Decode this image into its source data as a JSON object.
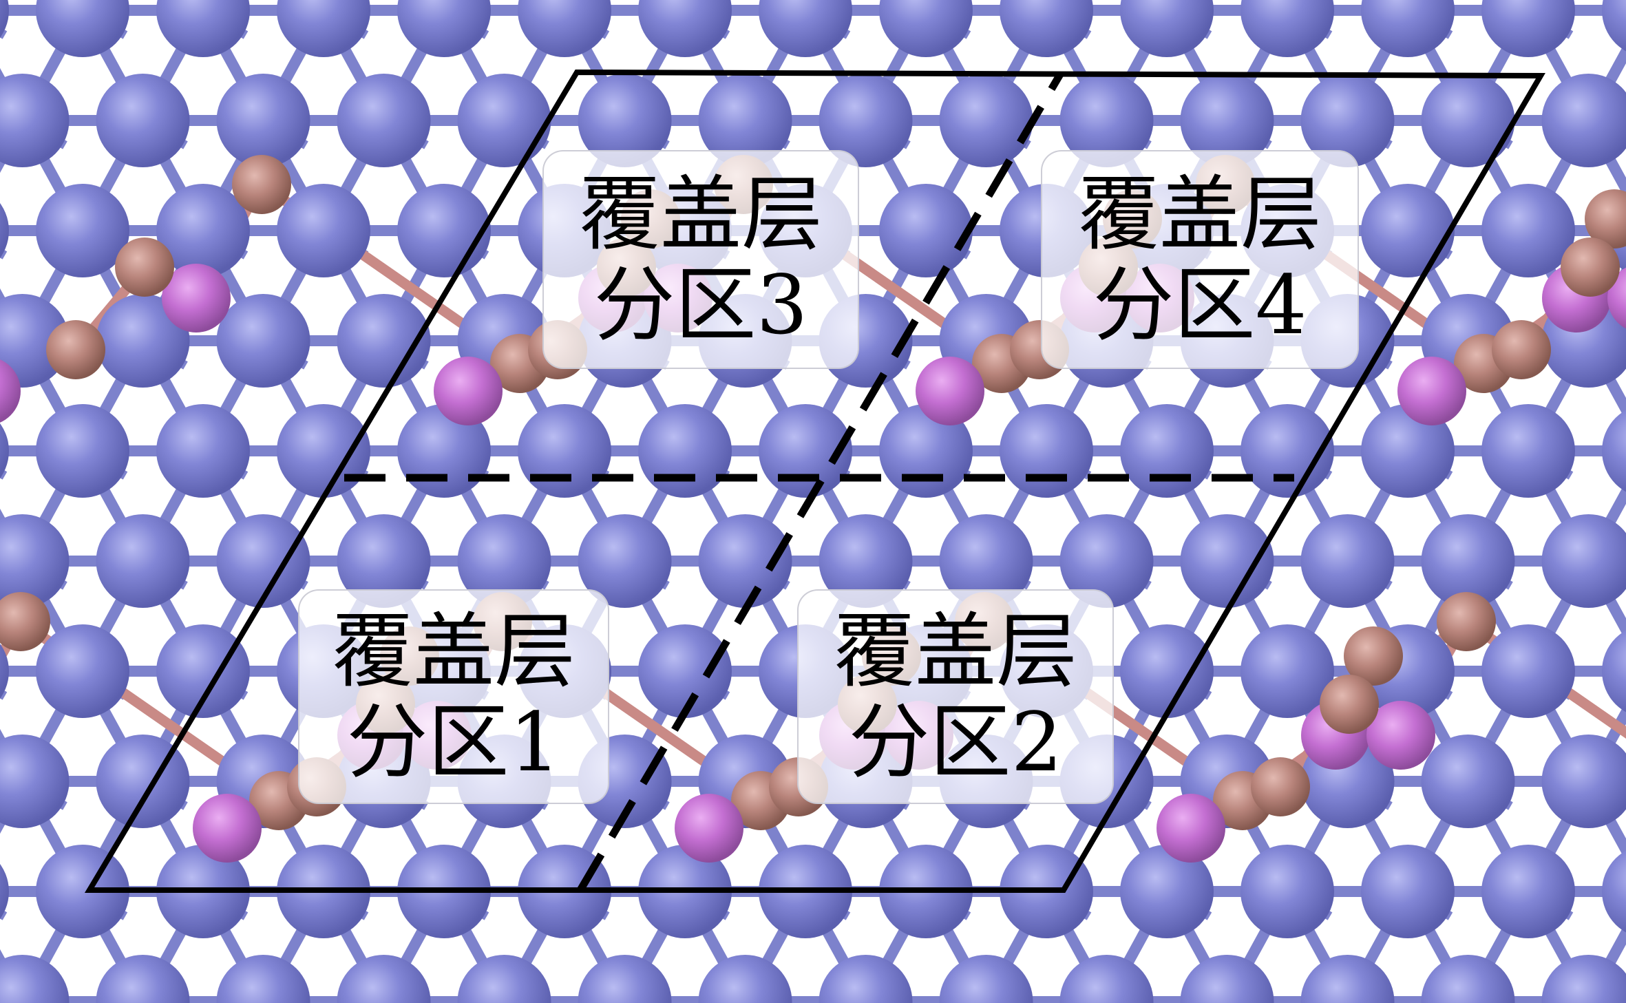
{
  "colors": {
    "atom_large": "#7b7fcf",
    "atom_large_highlight": "#b9bcf2",
    "atom_medium_pink": "#c46fd2",
    "atom_small_brown": "#b9857c",
    "bond_blue": "#7d82cc",
    "bond_pink": "#c98a86",
    "bond_magenta": "#b96bd3",
    "cell_outline": "#000000"
  },
  "regions": [
    {
      "id": "1",
      "line1": "覆盖层",
      "line2": "分区1"
    },
    {
      "id": "2",
      "line1": "覆盖层",
      "line2": "分区2"
    },
    {
      "id": "3",
      "line1": "覆盖层",
      "line2": "分区3"
    },
    {
      "id": "4",
      "line1": "覆盖层",
      "line2": "分区4"
    }
  ]
}
